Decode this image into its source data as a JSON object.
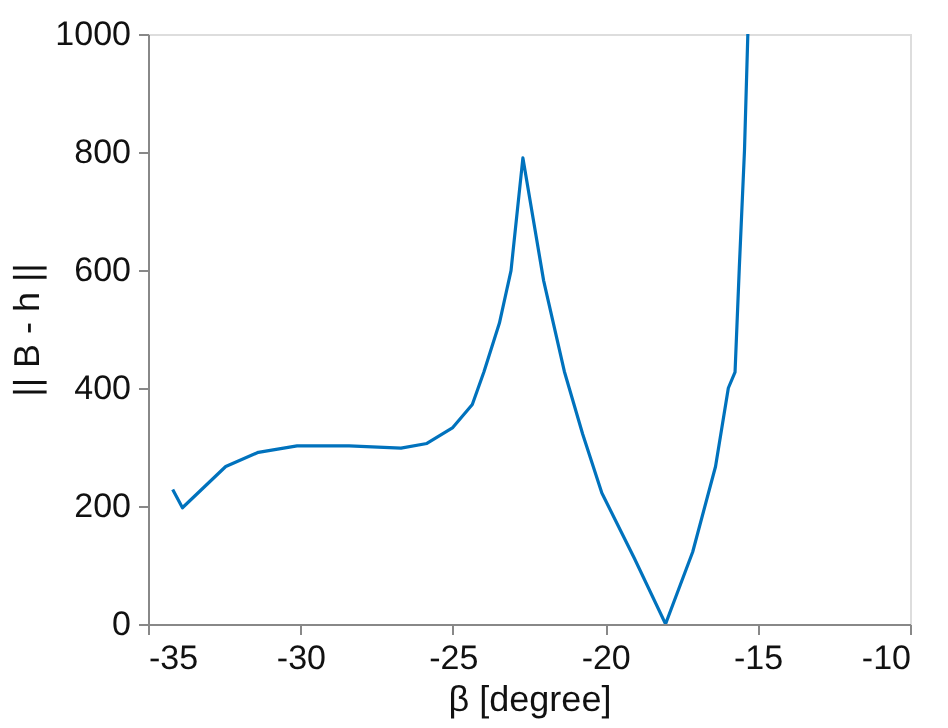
{
  "chart_data": {
    "type": "line",
    "xlabel": "β [degree]",
    "ylabel": "|| B - h ||",
    "x": [
      -34.19,
      -33.87,
      -32.45,
      -31.38,
      -30.11,
      -28.4,
      -26.7,
      -25.85,
      -25.0,
      -24.36,
      -23.98,
      -23.47,
      -23.09,
      -22.7,
      -22.02,
      -21.34,
      -20.74,
      -20.11,
      -19.04,
      -18.02,
      -17.13,
      -16.38,
      -15.96,
      -15.74,
      -15.6,
      -15.43,
      -15.32
    ],
    "series": [
      {
        "color": "#0072bd",
        "values": [
          228,
          197,
          267,
          291,
          302,
          302,
          298,
          306,
          333,
          372,
          427,
          510,
          599,
          790,
          582,
          428,
          322,
          222,
          111,
          0,
          122,
          267,
          400,
          427,
          604,
          803,
          1000
        ]
      }
    ],
    "xlim": [
      -35,
      -10
    ],
    "xticks": [
      -35,
      -30,
      -25,
      -20,
      -15,
      -10
    ],
    "ylim": [
      0,
      1000
    ],
    "yticks": [
      0,
      200,
      400,
      600,
      800,
      1000
    ],
    "grid": false,
    "line_style": "solid",
    "marker": "none"
  }
}
